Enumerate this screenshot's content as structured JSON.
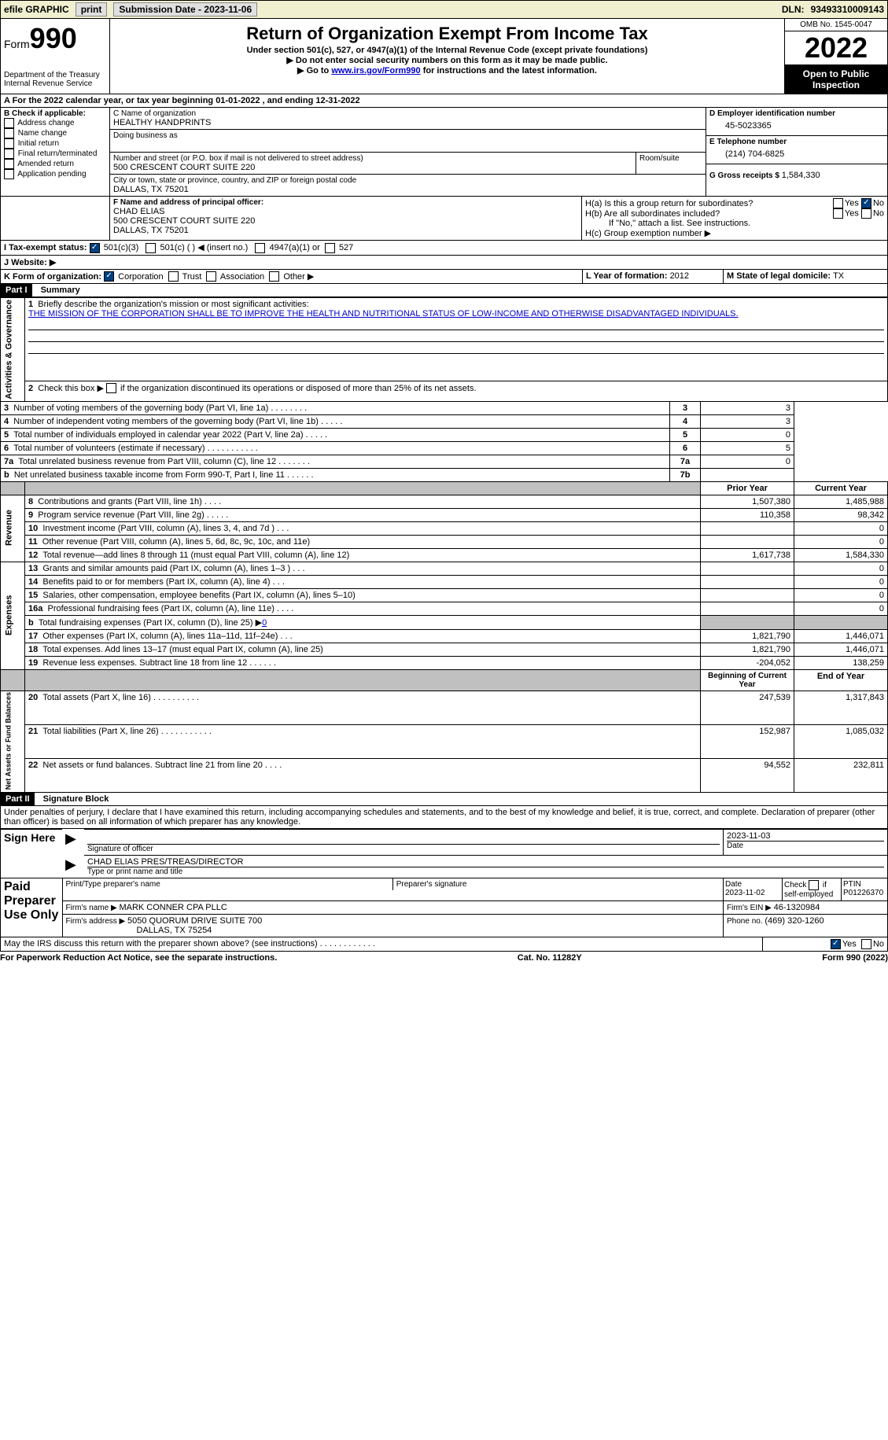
{
  "topbar": {
    "efile": "efile GRAPHIC",
    "print": "print",
    "subdate_label": "Submission Date - ",
    "subdate": "2023-11-06",
    "dln_label": "DLN: ",
    "dln": "93493310009143"
  },
  "header": {
    "form_word": "Form",
    "form_num": "990",
    "dept": "Department of the Treasury Internal Revenue Service",
    "title": "Return of Organization Exempt From Income Tax",
    "subtitle": "Under section 501(c), 527, or 4947(a)(1) of the Internal Revenue Code (except private foundations)",
    "note1": "▶ Do not enter social security numbers on this form as it may be made public.",
    "note2_pre": "▶ Go to ",
    "note2_link": "www.irs.gov/Form990",
    "note2_post": " for instructions and the latest information.",
    "omb": "OMB No. 1545-0047",
    "year": "2022",
    "open": "Open to Public Inspection"
  },
  "sectionA": {
    "line": "A For the 2022 calendar year, or tax year beginning 01-01-2022    , and ending 12-31-2022",
    "b_label": "B Check if applicable:",
    "b_items": [
      "Address change",
      "Name change",
      "Initial return",
      "Final return/terminated",
      "Amended return",
      "Application pending"
    ],
    "c_label": "C Name of organization",
    "org_name": "HEALTHY HANDPRINTS",
    "dba_label": "Doing business as",
    "addr_label": "Number and street (or P.O. box if mail is not delivered to street address)",
    "room_label": "Room/suite",
    "addr": "500 CRESCENT COURT SUITE 220",
    "city_label": "City or town, state or province, country, and ZIP or foreign postal code",
    "city": "DALLAS, TX  75201",
    "d_label": "D Employer identification number",
    "ein": "45-5023365",
    "e_label": "E Telephone number",
    "phone": "(214) 704-6825",
    "g_label": "G Gross receipts $ ",
    "gross": "1,584,330",
    "f_label": "F  Name and address of principal officer:",
    "officer_name": "CHAD ELIAS",
    "officer_addr1": "500 CRESCENT COURT SUITE 220",
    "officer_addr2": "DALLAS, TX  75201",
    "ha_label": "H(a)  Is this a group return for subordinates?",
    "hb_label": "H(b)  Are all subordinates included?",
    "hb_note": "If \"No,\" attach a list. See instructions.",
    "hc_label": "H(c)  Group exemption number ▶",
    "yes": "Yes",
    "no": "No",
    "i_label": "I    Tax-exempt status:",
    "i_501c3": "501(c)(3)",
    "i_501c": "501(c) (  ) ◀ (insert no.)",
    "i_4947": "4947(a)(1) or",
    "i_527": "527",
    "j_label": "J   Website: ▶",
    "k_label": "K Form of organization:",
    "k_corp": "Corporation",
    "k_trust": "Trust",
    "k_assoc": "Association",
    "k_other": "Other ▶",
    "l_label": "L Year of formation: ",
    "l_val": "2012",
    "m_label": "M State of legal domicile: ",
    "m_val": "TX"
  },
  "part1": {
    "label": "Part I",
    "title": "Summary",
    "line1_pre": "Briefly describe the organization's mission or most significant activities:",
    "mission": "THE MISSION OF THE CORPORATION SHALL BE TO IMPROVE THE HEALTH AND NUTRITIONAL STATUS OF LOW-INCOME AND OTHERWISE DISADVANTAGED INDIVIDUALS.",
    "line2": "Check this box ▶      if the organization discontinued its operations or disposed of more than 25% of its net assets.",
    "lines_gov": [
      {
        "n": "3",
        "t": "Number of voting members of the governing body (Part VI, line 1a)  .   .   .   .   .   .   .   .",
        "box": "3",
        "v": "3"
      },
      {
        "n": "4",
        "t": "Number of independent voting members of the governing body (Part VI, line 1b)   .   .   .   .   .",
        "box": "4",
        "v": "3"
      },
      {
        "n": "5",
        "t": "Total number of individuals employed in calendar year 2022 (Part V, line 2a)   .   .   .   .   .",
        "box": "5",
        "v": "0"
      },
      {
        "n": "6",
        "t": "Total number of volunteers (estimate if necessary)    .   .   .   .   .   .   .   .   .   .   .",
        "box": "6",
        "v": "5"
      },
      {
        "n": "7a",
        "t": "Total unrelated business revenue from Part VIII, column (C), line 12  .   .   .   .   .   .   .",
        "box": "7a",
        "v": "0"
      },
      {
        "n": "b",
        "t": "Net unrelated business taxable income from Form 990-T, Part I, line 11   .   .   .   .   .   .",
        "box": "7b",
        "v": ""
      }
    ],
    "prior_label": "Prior Year",
    "current_label": "Current Year",
    "lines_rev": [
      {
        "n": "8",
        "t": "Contributions and grants (Part VIII, line 1h)    .    .    .    .",
        "p": "1,507,380",
        "c": "1,485,988"
      },
      {
        "n": "9",
        "t": "Program service revenue (Part VIII, line 2g)   .    .    .    .    .",
        "p": "110,358",
        "c": "98,342"
      },
      {
        "n": "10",
        "t": "Investment income (Part VIII, column (A), lines 3, 4, and 7d )    .    .    .",
        "p": "",
        "c": "0"
      },
      {
        "n": "11",
        "t": "Other revenue (Part VIII, column (A), lines 5, 6d, 8c, 9c, 10c, and 11e)",
        "p": "",
        "c": "0"
      },
      {
        "n": "12",
        "t": "Total revenue—add lines 8 through 11 (must equal Part VIII, column (A), line 12)",
        "p": "1,617,738",
        "c": "1,584,330"
      }
    ],
    "lines_exp": [
      {
        "n": "13",
        "t": "Grants and similar amounts paid (Part IX, column (A), lines 1–3 )   .    .    .",
        "p": "",
        "c": "0"
      },
      {
        "n": "14",
        "t": "Benefits paid to or for members (Part IX, column (A), line 4)   .    .    .",
        "p": "",
        "c": "0"
      },
      {
        "n": "15",
        "t": "Salaries, other compensation, employee benefits (Part IX, column (A), lines 5–10)",
        "p": "",
        "c": "0"
      },
      {
        "n": "16a",
        "t": "Professional fundraising fees (Part IX, column (A), line 11e)    .    .    .    .",
        "p": "",
        "c": "0"
      },
      {
        "n": "b",
        "t": "Total fundraising expenses (Part IX, column (D), line 25) ▶",
        "fund": "0",
        "shaded": true
      },
      {
        "n": "17",
        "t": "Other expenses (Part IX, column (A), lines 11a–11d, 11f–24e)   .    .    .",
        "p": "1,821,790",
        "c": "1,446,071"
      },
      {
        "n": "18",
        "t": "Total expenses. Add lines 13–17 (must equal Part IX, column (A), line 25)",
        "p": "1,821,790",
        "c": "1,446,071"
      },
      {
        "n": "19",
        "t": "Revenue less expenses. Subtract line 18 from line 12  .    .   .    .    .    .",
        "p": "-204,052",
        "c": "138,259"
      }
    ],
    "begin_label": "Beginning of Current Year",
    "end_label": "End of Year",
    "lines_net": [
      {
        "n": "20",
        "t": "Total assets (Part X, line 16)  .    .    .   .    .    .    .  .    .    .",
        "p": "247,539",
        "c": "1,317,843"
      },
      {
        "n": "21",
        "t": "Total liabilities (Part X, line 26)  .    .    .    .    .   .    .    .    .    .    .",
        "p": "152,987",
        "c": "1,085,032"
      },
      {
        "n": "22",
        "t": "Net assets or fund balances. Subtract line 21 from line 20   .    .    .    .",
        "p": "94,552",
        "c": "232,811"
      }
    ],
    "gov_label": "Activities & Governance",
    "rev_label": "Revenue",
    "exp_label": "Expenses",
    "net_label": "Net Assets or Fund Balances"
  },
  "part2": {
    "label": "Part II",
    "title": "Signature Block",
    "penalty": "Under penalties of perjury, I declare that I have examined this return, including accompanying schedules and statements, and to the best of my knowledge and belief, it is true, correct, and complete. Declaration of preparer (other than officer) is based on all information of which preparer has any knowledge.",
    "sign_here": "Sign Here",
    "sig_officer": "Signature of officer",
    "sig_date": "2023-11-03",
    "date_label": "Date",
    "officer_typed": "CHAD ELIAS  PRES/TREAS/DIRECTOR",
    "type_label": "Type or print name and title",
    "paid": "Paid Preparer Use Only",
    "prep_name_label": "Print/Type preparer's name",
    "prep_sig_label": "Preparer's signature",
    "prep_date_label": "Date",
    "prep_date": "2023-11-02",
    "self_emp": "Check         if self-employed",
    "ptin_label": "PTIN",
    "ptin": "P01226370",
    "firm_name_label": "Firm's name      ▶ ",
    "firm_name": "MARK CONNER CPA PLLC",
    "firm_ein_label": "Firm's EIN ▶ ",
    "firm_ein": "46-1320984",
    "firm_addr_label": "Firm's address ▶ ",
    "firm_addr1": "5050 QUORUM DRIVE SUITE 700",
    "firm_addr2": "DALLAS, TX  75254",
    "firm_phone_label": "Phone no. ",
    "firm_phone": "(469) 320-1260",
    "discuss": "May the IRS discuss this return with the preparer shown above? (see instructions)    .    .    .    .    .    .    .    .    .    .    .    ."
  },
  "footer": {
    "left": "For Paperwork Reduction Act Notice, see the separate instructions.",
    "mid": "Cat. No. 11282Y",
    "right": "Form 990 (2022)"
  }
}
